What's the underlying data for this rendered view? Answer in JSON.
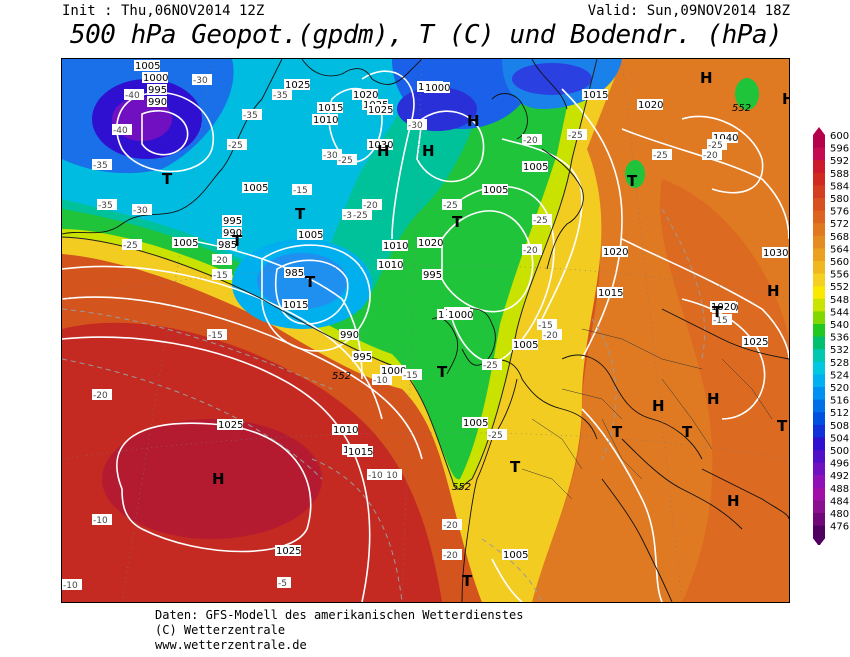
{
  "header": {
    "init_text": "Init : Thu,06NOV2014 12Z",
    "valid_text": "Valid: Sun,09NOV2014 18Z",
    "title": "500 hPa Geopot.(gpdm), T (C) und Bodendr. (hPa)"
  },
  "footer": {
    "line1": "Daten: GFS-Modell des amerikanischen Wetterdienstes",
    "line2": "(C) Wetterzentrale",
    "line3": "www.wetterzentrale.de"
  },
  "colorbar": {
    "levels": [
      600,
      596,
      592,
      588,
      584,
      580,
      576,
      572,
      568,
      564,
      560,
      556,
      552,
      548,
      544,
      540,
      536,
      532,
      528,
      524,
      520,
      516,
      512,
      508,
      504,
      500,
      496,
      492,
      488,
      484,
      480,
      476
    ],
    "colors": [
      "#b5004b",
      "#c40a50",
      "#cc1a2c",
      "#d02a20",
      "#d43d20",
      "#d85020",
      "#dc6420",
      "#e07820",
      "#e58c20",
      "#eba020",
      "#f0b820",
      "#f5d020",
      "#fae800",
      "#c8e400",
      "#80d800",
      "#20c820",
      "#00c070",
      "#00c8b0",
      "#00c8e0",
      "#00b0f0",
      "#0090f0",
      "#0070e8",
      "#0050e0",
      "#1030d8",
      "#3010d0",
      "#5010c8",
      "#7010c0",
      "#9010b8",
      "#a010a8",
      "#8a1090",
      "#700878",
      "#500060"
    ]
  },
  "map": {
    "pressure_labels": [
      "1005",
      "1000",
      "995",
      "990",
      "1025",
      "1025",
      "1020",
      "1025",
      "1015",
      "1010",
      "1010",
      "1000",
      "1030",
      "1015",
      "1005",
      "1005",
      "995",
      "990",
      "985",
      "985",
      "1015",
      "1005",
      "1010",
      "1020",
      "1010",
      "1005",
      "995",
      "1000",
      "1010",
      "1005",
      "990",
      "995",
      "1000",
      "1015",
      "1010",
      "1015",
      "1020",
      "1025",
      "1025",
      "1005",
      "1020",
      "1040",
      "1030",
      "1020",
      "1025",
      "1015",
      "1010",
      "1005",
      "1020",
      "1000",
      "1005"
    ],
    "temp_labels": [
      "-40",
      "-30",
      "-35",
      "-40",
      "-35",
      "-25",
      "-35",
      "-30",
      "-30",
      "-25",
      "-30",
      "-25",
      "-20",
      "-25",
      "-20",
      "-25",
      "-25",
      "-15",
      "-20",
      "-15",
      "-10",
      "-15",
      "-10",
      "-15",
      "-25",
      "-25",
      "-20",
      "-20",
      "-25",
      "-20",
      "-15",
      "-30",
      "-25",
      "-35",
      "-20",
      "-25",
      "-20",
      "-10",
      "-10",
      "-5",
      "-10",
      "-20",
      "-15"
    ],
    "high_symbol": "H",
    "low_symbol": "T",
    "contour_552_label": "552"
  }
}
